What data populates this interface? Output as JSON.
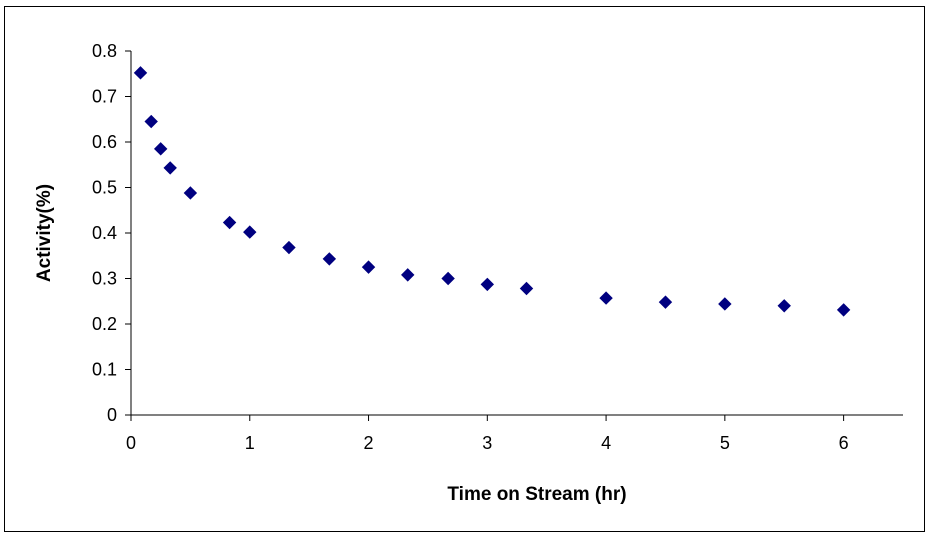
{
  "chart_data": {
    "type": "scatter",
    "title": "",
    "xlabel": "Time on Stream (hr)",
    "ylabel": "Activity(%)",
    "xlim": [
      0,
      6.5
    ],
    "ylim": [
      0,
      0.8
    ],
    "xticks": [
      0,
      1,
      2,
      3,
      4,
      5,
      6
    ],
    "yticks": [
      0,
      0.1,
      0.2,
      0.3,
      0.4,
      0.5,
      0.6,
      0.7,
      0.8
    ],
    "grid": false,
    "legend": "none",
    "marker": "diamond",
    "marker_color": "#000080",
    "series": [
      {
        "x": [
          0.08,
          0.17,
          0.25,
          0.33,
          0.5,
          0.83,
          1.0,
          1.33,
          1.67,
          2.0,
          2.33,
          2.67,
          3.0,
          3.33,
          4.0,
          4.5,
          5.0,
          5.5,
          6.0
        ],
        "y": [
          0.752,
          0.645,
          0.585,
          0.543,
          0.488,
          0.423,
          0.402,
          0.368,
          0.343,
          0.325,
          0.308,
          0.3,
          0.287,
          0.278,
          0.257,
          0.248,
          0.244,
          0.24,
          0.231
        ]
      }
    ]
  }
}
